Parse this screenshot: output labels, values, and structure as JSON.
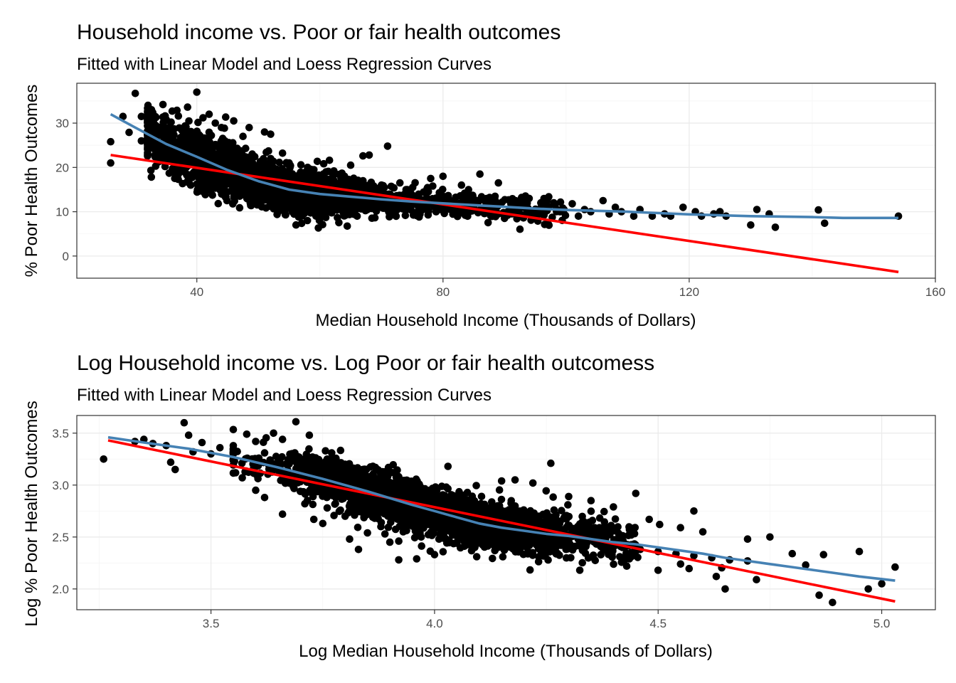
{
  "chart_data": [
    {
      "type": "scatter",
      "title": "Household income vs. Poor or fair health outcomes",
      "subtitle": "Fitted with Linear Model and Loess Regression Curves",
      "xlabel": "Median Household Income (Thousands of Dollars)",
      "ylabel": "% Poor Health Outcomes",
      "xlim": [
        20.5,
        160
      ],
      "ylim": [
        -5,
        39
      ],
      "x_ticks": [
        40,
        80,
        120,
        160
      ],
      "x_tick_labels": [
        "40",
        "80",
        "120",
        "160"
      ],
      "y_ticks": [
        0,
        10,
        20,
        30
      ],
      "y_tick_labels": [
        "0",
        "10",
        "20",
        "30"
      ],
      "grid": true,
      "legend": "none",
      "point_color": "#000000",
      "points": [
        [
          26,
          25.8
        ],
        [
          30,
          36.7
        ],
        [
          40,
          37.0
        ],
        [
          28,
          31.5
        ],
        [
          31,
          31.5
        ],
        [
          33,
          30.0
        ],
        [
          34.5,
          34.2
        ],
        [
          36,
          32.7
        ],
        [
          37,
          31.6
        ],
        [
          38.5,
          33.6
        ],
        [
          41,
          31.2
        ],
        [
          42,
          32.0
        ],
        [
          43,
          30.0
        ],
        [
          44,
          29.0
        ],
        [
          46,
          30.5
        ],
        [
          48.5,
          29.0
        ],
        [
          51,
          28.0
        ],
        [
          52,
          27.5
        ],
        [
          47.5,
          27.0
        ],
        [
          29,
          27.9
        ],
        [
          31,
          26.0
        ],
        [
          33.5,
          24.5
        ],
        [
          35,
          23.0
        ],
        [
          37,
          22.0
        ],
        [
          26,
          21.0
        ],
        [
          37,
          18.5
        ],
        [
          39,
          16.0
        ],
        [
          42,
          15.5
        ],
        [
          45,
          14.5
        ],
        [
          50,
          13.5
        ],
        [
          55,
          11.5
        ],
        [
          58,
          10.5
        ],
        [
          62,
          10.5
        ],
        [
          67,
          22.6
        ],
        [
          68,
          22.8
        ],
        [
          71,
          24.8
        ],
        [
          65,
          20.5
        ],
        [
          73,
          16.5
        ],
        [
          78,
          17.5
        ],
        [
          80,
          18.0
        ],
        [
          83,
          16.0
        ],
        [
          86,
          18.5
        ],
        [
          89,
          16.5
        ],
        [
          94,
          13.0
        ],
        [
          95,
          10.5
        ],
        [
          98,
          12.0
        ],
        [
          101,
          11.8
        ],
        [
          103,
          10.5
        ],
        [
          106,
          12.5
        ],
        [
          108,
          11.0
        ],
        [
          111,
          9.0
        ],
        [
          116,
          9.5
        ],
        [
          119,
          11.0
        ],
        [
          121,
          10.0
        ],
        [
          124,
          9.5
        ],
        [
          126,
          9.0
        ],
        [
          130,
          7.0
        ],
        [
          131,
          10.5
        ],
        [
          133,
          9.5
        ],
        [
          134,
          6.5
        ],
        [
          141,
          10.4
        ],
        [
          142,
          7.4
        ],
        [
          154,
          9.0
        ],
        [
          90,
          8.5
        ],
        [
          92,
          9.5
        ],
        [
          84,
          9.0
        ],
        [
          88,
          10.0
        ],
        [
          76,
          9.0
        ],
        [
          72,
          9.5
        ],
        [
          70,
          11.0
        ],
        [
          64,
          12.0
        ],
        [
          60,
          11.0
        ],
        [
          56,
          13.0
        ],
        [
          53,
          12.0
        ],
        [
          49,
          14.0
        ],
        [
          46,
          16.0
        ],
        [
          44,
          19.0
        ],
        [
          42,
          20.0
        ],
        [
          40,
          22.0
        ],
        [
          38,
          24.0
        ],
        [
          36,
          26.0
        ],
        [
          35,
          28.0
        ],
        [
          39,
          27.0
        ],
        [
          41,
          25.0
        ],
        [
          43,
          23.0
        ],
        [
          45,
          21.0
        ],
        [
          47,
          20.0
        ],
        [
          50,
          19.0
        ],
        [
          52,
          18.0
        ],
        [
          54,
          17.0
        ],
        [
          57,
          16.0
        ],
        [
          59,
          15.0
        ],
        [
          61,
          14.0
        ],
        [
          63,
          13.5
        ],
        [
          66,
          13.0
        ],
        [
          68,
          12.5
        ],
        [
          71,
          12.0
        ],
        [
          74,
          11.5
        ],
        [
          77,
          11.0
        ],
        [
          79,
          10.5
        ],
        [
          82,
          11.0
        ],
        [
          85,
          10.5
        ],
        [
          87,
          11.5
        ],
        [
          91,
          10.0
        ],
        [
          93,
          11.0
        ],
        [
          96,
          9.5
        ],
        [
          99,
          10.0
        ],
        [
          102,
          9.0
        ],
        [
          104,
          10.0
        ],
        [
          107,
          9.5
        ],
        [
          109,
          10.0
        ],
        [
          112,
          10.5
        ],
        [
          114,
          9.0
        ],
        [
          117,
          9.0
        ],
        [
          122,
          9.0
        ],
        [
          125,
          10.0
        ],
        [
          58,
          20.0
        ],
        [
          61,
          19.0
        ],
        [
          64,
          18.0
        ],
        [
          67,
          17.0
        ],
        [
          70,
          16.0
        ],
        [
          74,
          15.0
        ],
        [
          55,
          21.0
        ],
        [
          52,
          22.0
        ],
        [
          49,
          23.0
        ],
        [
          46,
          24.0
        ],
        [
          44,
          26.0
        ]
      ],
      "lines": [
        {
          "method": "lm",
          "color": "#ff0000",
          "points": [
            [
              26,
              22.8
            ],
            [
              154,
              -3.6
            ]
          ]
        },
        {
          "method": "loess",
          "color": "#4682b4",
          "points": [
            [
              26,
              32.0
            ],
            [
              30,
              29.0
            ],
            [
              35,
              25.3
            ],
            [
              40,
              22.4
            ],
            [
              45,
              19.4
            ],
            [
              50,
              16.9
            ],
            [
              55,
              15.0
            ],
            [
              60,
              14.0
            ],
            [
              65,
              13.4
            ],
            [
              70,
              12.8
            ],
            [
              75,
              12.3
            ],
            [
              80,
              11.9
            ],
            [
              85,
              11.5
            ],
            [
              90,
              11.1
            ],
            [
              95,
              10.7
            ],
            [
              100,
              10.4
            ],
            [
              105,
              10.2
            ],
            [
              110,
              10.0
            ],
            [
              115,
              9.7
            ],
            [
              120,
              9.4
            ],
            [
              125,
              9.2
            ],
            [
              130,
              9.0
            ],
            [
              135,
              8.9
            ],
            [
              140,
              8.8
            ],
            [
              145,
              8.6
            ],
            [
              150,
              8.6
            ],
            [
              154,
              8.6
            ]
          ]
        }
      ]
    },
    {
      "type": "scatter",
      "title": "Log Household income vs. Log Poor or fair health outcomess",
      "subtitle": "Fitted with Linear Model and Loess Regression Curves",
      "xlabel": "Log Median Household Income (Thousands of Dollars)",
      "ylabel": "Log % Poor Health Outcomes",
      "xlim": [
        3.2,
        5.12
      ],
      "ylim": [
        1.8,
        3.67
      ],
      "x_ticks": [
        3.5,
        4.0,
        4.5,
        5.0
      ],
      "x_tick_labels": [
        "3.5",
        "4.0",
        "4.5",
        "5.0"
      ],
      "y_ticks": [
        2.0,
        2.5,
        3.0,
        3.5
      ],
      "y_tick_labels": [
        "2.0",
        "2.5",
        "3.0",
        "3.5"
      ],
      "grid": true,
      "legend": "none",
      "point_color": "#000000",
      "points": [
        [
          3.26,
          3.25
        ],
        [
          3.33,
          3.42
        ],
        [
          3.35,
          3.44
        ],
        [
          3.37,
          3.4
        ],
        [
          3.4,
          3.38
        ],
        [
          3.41,
          3.22
        ],
        [
          3.42,
          3.15
        ],
        [
          3.44,
          3.6
        ],
        [
          3.45,
          3.48
        ],
        [
          3.46,
          3.32
        ],
        [
          3.48,
          3.41
        ],
        [
          3.5,
          3.3
        ],
        [
          3.52,
          3.36
        ],
        [
          3.55,
          3.35
        ],
        [
          3.58,
          3.49
        ],
        [
          3.6,
          3.42
        ],
        [
          3.62,
          3.31
        ],
        [
          3.64,
          3.5
        ],
        [
          3.66,
          3.44
        ],
        [
          3.69,
          3.61
        ],
        [
          3.72,
          3.48
        ],
        [
          3.57,
          3.07
        ],
        [
          3.6,
          2.95
        ],
        [
          3.62,
          2.88
        ],
        [
          3.66,
          2.72
        ],
        [
          3.71,
          2.82
        ],
        [
          3.73,
          2.67
        ],
        [
          3.75,
          2.63
        ],
        [
          3.77,
          3.31
        ],
        [
          3.81,
          2.48
        ],
        [
          3.83,
          2.38
        ],
        [
          3.85,
          2.54
        ],
        [
          3.9,
          2.45
        ],
        [
          3.92,
          2.28
        ],
        [
          3.96,
          2.29
        ],
        [
          4.0,
          2.33
        ],
        [
          4.03,
          3.18
        ],
        [
          4.07,
          2.43
        ],
        [
          4.11,
          2.48
        ],
        [
          4.15,
          3.04
        ],
        [
          4.18,
          3.05
        ],
        [
          4.22,
          3.02
        ],
        [
          4.26,
          3.21
        ],
        [
          4.3,
          2.89
        ],
        [
          4.35,
          2.85
        ],
        [
          4.4,
          2.79
        ],
        [
          4.45,
          2.92
        ],
        [
          4.48,
          2.67
        ],
        [
          4.5,
          2.18
        ],
        [
          4.55,
          2.59
        ],
        [
          4.58,
          2.75
        ],
        [
          4.6,
          2.55
        ],
        [
          4.63,
          2.12
        ],
        [
          4.65,
          2.0
        ],
        [
          4.7,
          2.48
        ],
        [
          4.72,
          2.09
        ],
        [
          4.75,
          2.5
        ],
        [
          4.8,
          2.34
        ],
        [
          4.83,
          2.23
        ],
        [
          4.86,
          1.94
        ],
        [
          4.87,
          2.33
        ],
        [
          4.89,
          1.87
        ],
        [
          4.95,
          2.36
        ],
        [
          4.97,
          2.0
        ],
        [
          5.03,
          2.21
        ],
        [
          5.0,
          2.05
        ],
        [
          3.7,
          3.15
        ],
        [
          3.74,
          3.05
        ],
        [
          3.78,
          2.95
        ],
        [
          3.82,
          3.0
        ],
        [
          3.86,
          2.9
        ],
        [
          3.9,
          2.8
        ],
        [
          3.94,
          2.75
        ],
        [
          3.98,
          2.7
        ],
        [
          4.02,
          2.65
        ],
        [
          4.06,
          2.6
        ],
        [
          4.1,
          2.58
        ],
        [
          4.14,
          2.55
        ],
        [
          4.18,
          2.52
        ],
        [
          4.22,
          2.5
        ],
        [
          4.26,
          2.48
        ],
        [
          4.3,
          2.46
        ],
        [
          4.34,
          2.44
        ],
        [
          4.38,
          2.42
        ],
        [
          4.42,
          2.4
        ],
        [
          4.46,
          2.38
        ],
        [
          4.5,
          2.36
        ],
        [
          4.54,
          2.34
        ],
        [
          4.58,
          2.32
        ],
        [
          4.62,
          2.3
        ],
        [
          4.66,
          2.28
        ],
        [
          4.7,
          2.27
        ],
        [
          3.88,
          2.6
        ],
        [
          3.93,
          2.55
        ],
        [
          3.97,
          2.5
        ],
        [
          4.01,
          2.48
        ],
        [
          4.05,
          2.44
        ],
        [
          4.09,
          2.4
        ],
        [
          3.8,
          2.7
        ],
        [
          3.76,
          2.78
        ],
        [
          4.04,
          2.9
        ],
        [
          4.08,
          2.85
        ],
        [
          4.12,
          2.78
        ],
        [
          4.16,
          2.7
        ],
        [
          4.2,
          2.68
        ],
        [
          4.24,
          2.62
        ],
        [
          4.28,
          2.58
        ],
        [
          4.32,
          2.6
        ],
        [
          4.36,
          2.55
        ],
        [
          4.4,
          2.58
        ],
        [
          4.44,
          2.52
        ],
        [
          3.95,
          3.0
        ],
        [
          3.92,
          3.08
        ],
        [
          3.88,
          3.1
        ],
        [
          3.84,
          3.15
        ],
        [
          3.8,
          3.2
        ],
        [
          3.76,
          3.25
        ],
        [
          3.68,
          3.3
        ]
      ],
      "lines": [
        {
          "method": "lm",
          "color": "#ff0000",
          "points": [
            [
              3.27,
              3.43
            ],
            [
              5.03,
              1.88
            ]
          ]
        },
        {
          "method": "loess",
          "color": "#4682b4",
          "points": [
            [
              3.27,
              3.46
            ],
            [
              3.35,
              3.41
            ],
            [
              3.45,
              3.35
            ],
            [
              3.55,
              3.27
            ],
            [
              3.65,
              3.17
            ],
            [
              3.75,
              3.06
            ],
            [
              3.85,
              2.94
            ],
            [
              3.95,
              2.81
            ],
            [
              4.0,
              2.75
            ],
            [
              4.05,
              2.69
            ],
            [
              4.1,
              2.63
            ],
            [
              4.15,
              2.59
            ],
            [
              4.2,
              2.56
            ],
            [
              4.25,
              2.53
            ],
            [
              4.3,
              2.51
            ],
            [
              4.35,
              2.48
            ],
            [
              4.4,
              2.45
            ],
            [
              4.45,
              2.43
            ],
            [
              4.5,
              2.4
            ],
            [
              4.55,
              2.37
            ],
            [
              4.6,
              2.34
            ],
            [
              4.65,
              2.3
            ],
            [
              4.7,
              2.27
            ],
            [
              4.75,
              2.24
            ],
            [
              4.8,
              2.21
            ],
            [
              4.85,
              2.18
            ],
            [
              4.9,
              2.15
            ],
            [
              4.95,
              2.12
            ],
            [
              5.03,
              2.08
            ]
          ]
        }
      ]
    }
  ]
}
